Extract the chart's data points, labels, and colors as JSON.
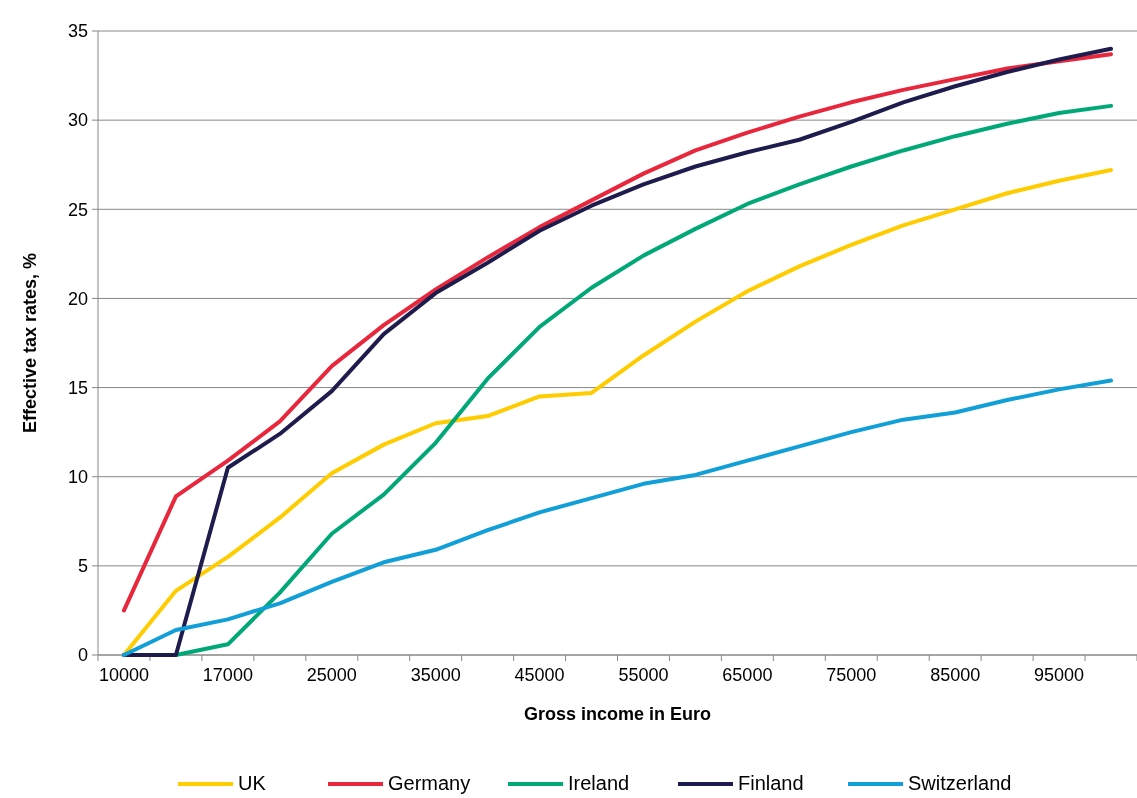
{
  "chart_data": {
    "type": "line",
    "xlabel": "Gross income in Euro",
    "ylabel": "Effective tax rates, %",
    "categories": [
      "10000",
      null,
      "17000",
      null,
      "25000",
      null,
      "35000",
      null,
      "45000",
      null,
      "55000",
      null,
      "65000",
      null,
      "75000",
      null,
      "85000",
      null,
      "95000",
      null
    ],
    "series": [
      {
        "name": "UK",
        "color": "#ffcc00",
        "values": [
          0,
          3.6,
          5.5,
          7.7,
          10.2,
          11.8,
          13.0,
          13.4,
          14.5,
          14.7,
          16.8,
          18.7,
          20.4,
          21.8,
          23.0,
          24.1,
          25.0,
          25.9,
          26.6,
          27.2
        ]
      },
      {
        "name": "Germany",
        "color": "#e8273c",
        "values": [
          2.5,
          8.9,
          10.9,
          13.1,
          16.2,
          18.5,
          20.5,
          22.3,
          24.0,
          25.5,
          27.0,
          28.3,
          29.3,
          30.2,
          31.0,
          31.7,
          32.3,
          32.9,
          33.3,
          33.7
        ]
      },
      {
        "name": "Ireland",
        "color": "#00a878",
        "values": [
          0,
          0,
          0.6,
          3.5,
          6.8,
          9.0,
          11.9,
          15.5,
          18.4,
          20.6,
          22.4,
          23.9,
          25.3,
          26.4,
          27.4,
          28.3,
          29.1,
          29.8,
          30.4,
          30.8
        ]
      },
      {
        "name": "Finland",
        "color": "#1e1b4d",
        "values": [
          0,
          0,
          10.5,
          12.4,
          14.8,
          18.0,
          20.3,
          22.0,
          23.8,
          25.2,
          26.4,
          27.4,
          28.2,
          28.9,
          29.9,
          31.0,
          31.9,
          32.7,
          33.4,
          34.0
        ]
      },
      {
        "name": "Switzerland",
        "color": "#109fd6",
        "values": [
          0,
          1.4,
          2.0,
          2.9,
          4.1,
          5.2,
          5.9,
          7.0,
          8.0,
          8.8,
          9.6,
          10.1,
          10.9,
          11.7,
          12.5,
          13.2,
          13.6,
          14.3,
          14.9,
          15.4
        ]
      }
    ],
    "ylim": [
      0,
      35
    ],
    "yticks": [
      0,
      5,
      10,
      15,
      20,
      25,
      30,
      35
    ],
    "grid": "y",
    "legend": "bottom",
    "marker": "none",
    "line_style": "solid"
  }
}
